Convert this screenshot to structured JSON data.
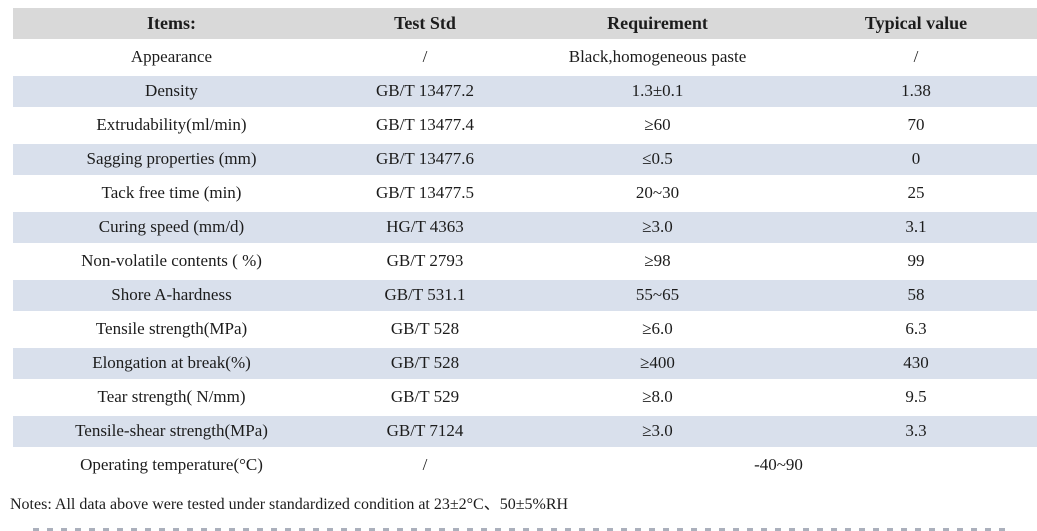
{
  "table": {
    "columns": [
      "Items:",
      "Test Std",
      "Requirement",
      "Typical value"
    ],
    "rows": [
      {
        "item": "Appearance",
        "test_std": "/",
        "requirement": "Black,homogeneous paste",
        "typical_value": "/"
      },
      {
        "item": "Density",
        "test_std": "GB/T 13477.2",
        "requirement": "1.3±0.1",
        "typical_value": "1.38"
      },
      {
        "item": "Extrudability(ml/min)",
        "test_std": "GB/T 13477.4",
        "requirement": "≥60",
        "typical_value": "70"
      },
      {
        "item": "Sagging properties (mm)",
        "test_std": "GB/T 13477.6",
        "requirement": "≤0.5",
        "typical_value": "0"
      },
      {
        "item": "Tack free time (min)",
        "test_std": "GB/T 13477.5",
        "requirement": "20~30",
        "typical_value": "25"
      },
      {
        "item": "Curing speed (mm/d)",
        "test_std": "HG/T 4363",
        "requirement": "≥3.0",
        "typical_value": "3.1"
      },
      {
        "item": "Non-volatile contents ( %)",
        "test_std": "GB/T 2793",
        "requirement": "≥98",
        "typical_value": "99"
      },
      {
        "item": "Shore A-hardness",
        "test_std": "GB/T 531.1",
        "requirement": "55~65",
        "typical_value": "58"
      },
      {
        "item": "Tensile strength(MPa)",
        "test_std": "GB/T 528",
        "requirement": "≥6.0",
        "typical_value": "6.3"
      },
      {
        "item": "Elongation at break(%)",
        "test_std": "GB/T 528",
        "requirement": "≥400",
        "typical_value": "430"
      },
      {
        "item": "Tear strength( N/mm)",
        "test_std": "GB/T 529",
        "requirement": "≥8.0",
        "typical_value": "9.5"
      },
      {
        "item": "Tensile-shear strength(MPa)",
        "test_std": "GB/T 7124",
        "requirement": "≥3.0",
        "typical_value": "3.3"
      },
      {
        "item": "Operating temperature(°C)",
        "test_std": "/",
        "requirement": "-40~90",
        "typical_value": null,
        "merge_last_two": true
      }
    ]
  },
  "notes": "Notes: All data above were tested under standardized condition at 23±2°C、50±5%RH",
  "colors": {
    "header_bg": "#d9d9d9",
    "alt_row_bg": "#d9e0ec",
    "row_bg": "#ffffff",
    "text": "#1c1c1c"
  }
}
